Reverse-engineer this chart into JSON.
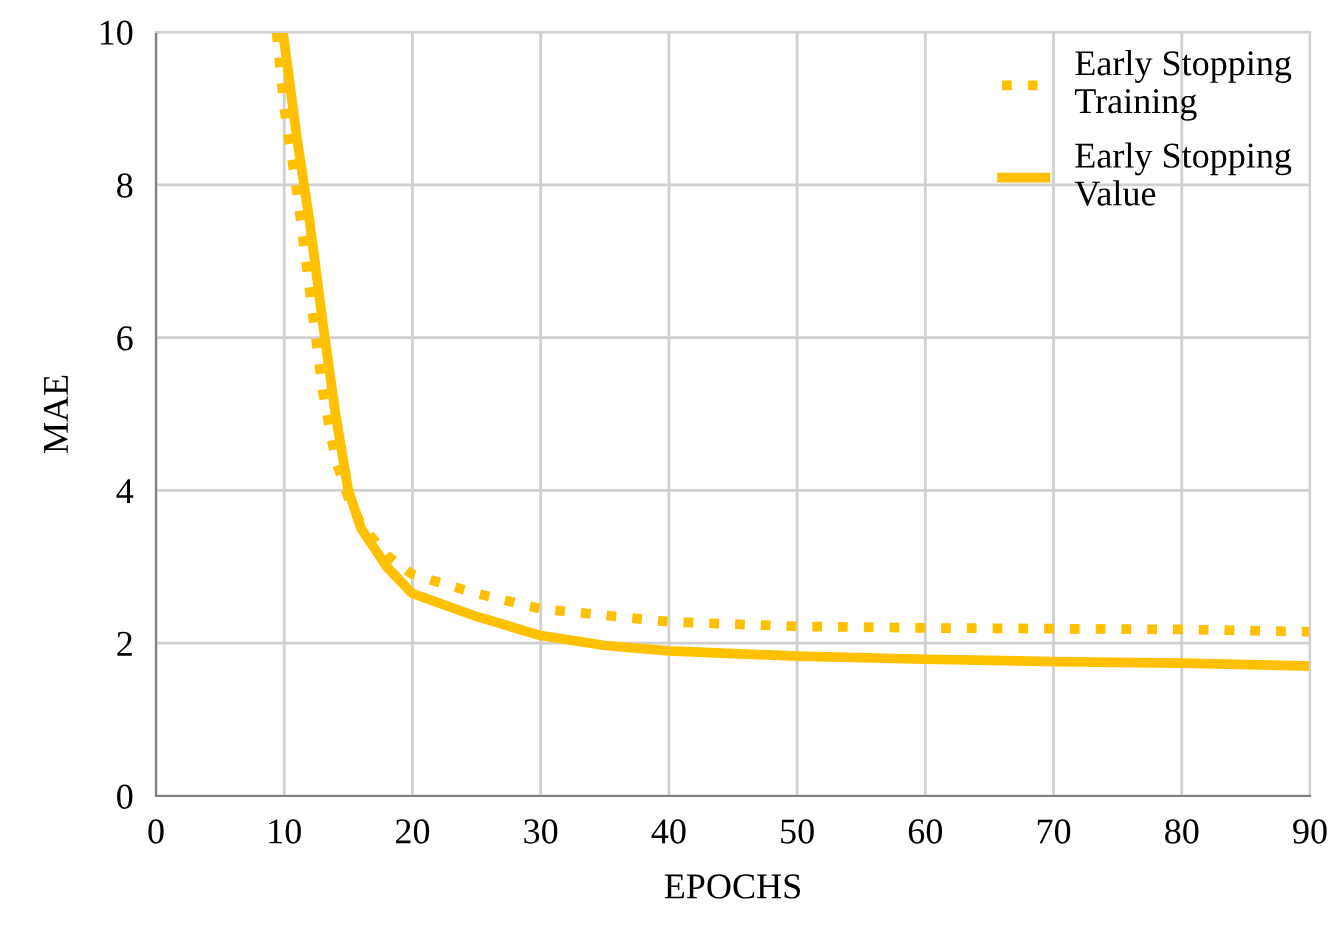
{
  "chart_data": {
    "type": "line",
    "xlabel": "EPOCHS",
    "ylabel": "MAE",
    "xlim": [
      0,
      90
    ],
    "ylim": [
      0,
      10
    ],
    "xticks": [
      0,
      10,
      20,
      30,
      40,
      50,
      60,
      70,
      80,
      90
    ],
    "yticks": [
      0,
      2,
      4,
      6,
      8,
      10
    ],
    "grid": true,
    "legend": "top right",
    "series": [
      {
        "name": "Early Stopping\nTraining",
        "color": "#ffc000",
        "line_style": "dotted",
        "x": [
          9.4,
          10,
          11,
          12,
          13,
          14,
          15,
          16,
          18,
          20,
          25,
          30,
          40,
          50,
          60,
          70,
          80,
          90
        ],
        "values": [
          10,
          9.0,
          7.9,
          6.6,
          5.3,
          4.4,
          3.9,
          3.55,
          3.15,
          2.9,
          2.65,
          2.45,
          2.28,
          2.22,
          2.2,
          2.19,
          2.18,
          2.15
        ]
      },
      {
        "name": "Early Stopping\nValue",
        "color": "#ffc000",
        "line_style": "solid",
        "x": [
          9.9,
          11,
          12,
          13,
          14,
          15,
          16,
          18,
          20,
          25,
          30,
          35,
          40,
          50,
          60,
          70,
          80,
          90
        ],
        "values": [
          10,
          8.6,
          7.5,
          6.2,
          5.0,
          4.0,
          3.5,
          3.0,
          2.65,
          2.35,
          2.1,
          1.97,
          1.9,
          1.83,
          1.79,
          1.76,
          1.74,
          1.7
        ]
      }
    ]
  }
}
